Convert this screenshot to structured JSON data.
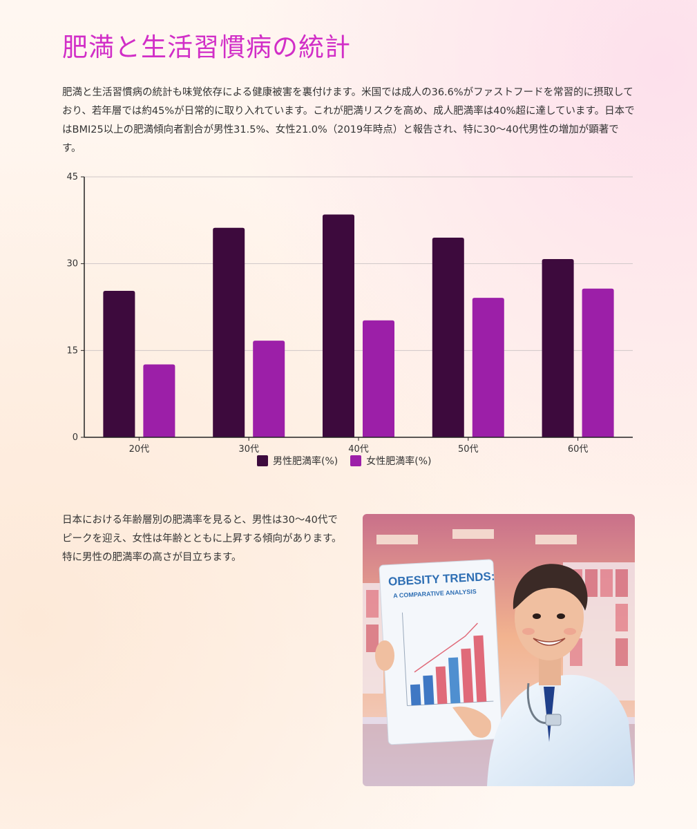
{
  "page": {
    "title": "肥満と生活習慣病の統計",
    "intro": "肥満と生活習慣病の統計も味覚依存による健康被害を裏付けます。米国では成人の36.6%がファストフードを常習的に摂取しており、若年層では約45%が日常的に取り入れています。これが肥満リスクを高め、成人肥満率は40%超に達しています。日本ではBMI25以上の肥満傾向者割合が男性31.5%、女性21.0%（2019年時点）と報告され、特に30〜40代男性の増加が顕著です。",
    "note": "日本における年齢層別の肥満率を見ると、男性は30〜40代でピークを迎え、女性は年齢とともに上昇する傾向があります。特に男性の肥満率の高さが目立ちます。"
  },
  "chart_data": {
    "type": "bar",
    "categories": [
      "20代",
      "30代",
      "40代",
      "50代",
      "60代"
    ],
    "series": [
      {
        "name": "男性肥満率(%)",
        "values": [
          25.3,
          36.2,
          38.5,
          34.5,
          30.8
        ],
        "color": "#3d0a3d"
      },
      {
        "name": "女性肥満率(%)",
        "values": [
          12.6,
          16.7,
          20.2,
          24.1,
          25.7
        ],
        "color": "#9c1fa8"
      }
    ],
    "ylim": [
      0,
      45
    ],
    "yticks": [
      0,
      15,
      30,
      45
    ],
    "grid": true,
    "legend": "bottom-center"
  },
  "illustration": {
    "board_title": "OBESITY TRENDS:",
    "board_subtitle": "A COMPARATIVE ANALYSIS",
    "board_values": [
      0.25,
      0.35,
      0.45,
      0.55,
      0.65,
      0.8
    ]
  }
}
